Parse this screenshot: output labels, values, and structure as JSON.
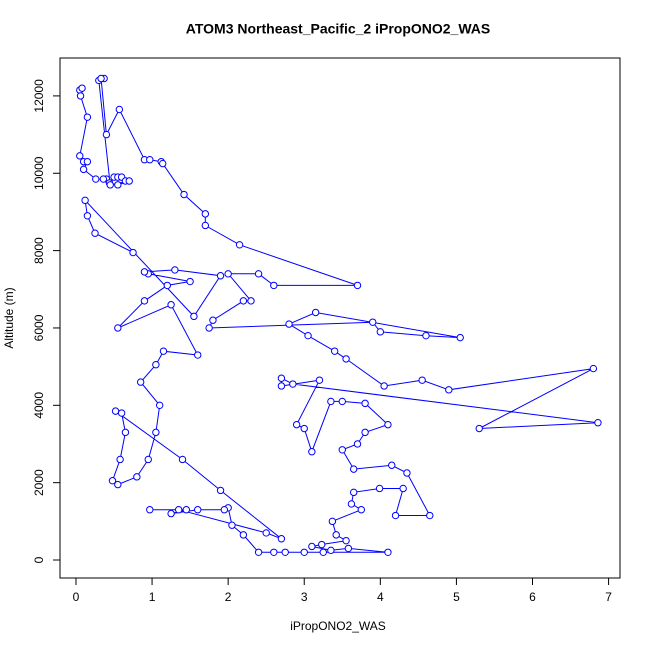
{
  "chart_data": {
    "type": "line",
    "title": "ATOM3 Northeast_Pacific_2 iPropONO2_WAS",
    "xlabel": "iPropONO2_WAS",
    "ylabel": "Altitude (m)",
    "color": "#0000ff",
    "marker": "circle",
    "x": [
      0.05,
      0.08,
      0.06,
      0.15,
      0.05,
      0.1,
      0.15,
      0.1,
      0.26,
      0.4,
      0.36,
      0.44,
      0.5,
      0.55,
      0.6,
      0.65,
      0.55,
      0.7,
      0.45,
      0.3,
      0.37,
      0.33,
      0.4,
      0.57,
      0.9,
      0.97,
      1.12,
      1.14,
      1.42,
      1.7,
      1.7,
      2.15,
      3.7,
      2.6,
      2.4,
      2.0,
      2.3,
      2.2,
      1.8,
      1.75,
      3.9,
      4.0,
      4.6,
      5.05,
      3.15,
      2.8,
      3.05,
      3.4,
      3.55,
      4.05,
      4.55,
      4.9,
      6.8,
      5.3,
      6.86,
      2.85,
      2.7,
      2.7,
      3.2,
      2.9,
      3.0,
      3.1,
      3.35,
      3.5,
      3.8,
      4.1,
      3.8,
      3.7,
      3.5,
      3.65,
      4.15,
      4.35,
      4.65,
      4.2,
      4.3,
      3.99,
      3.65,
      3.62,
      3.75,
      3.37,
      3.42,
      3.55,
      3.23,
      3.1,
      3.35,
      3.58,
      4.1,
      3.25,
      3.0,
      2.75,
      2.6,
      2.4,
      2.2,
      2.05,
      2.0,
      1.95,
      1.6,
      1.25,
      1.45,
      0.97,
      1.35,
      2.5,
      2.7,
      1.9,
      1.4,
      0.52,
      0.6,
      0.65,
      0.58,
      0.48,
      0.55,
      0.8,
      0.95,
      1.05,
      1.1,
      0.85,
      1.05,
      1.15,
      1.6,
      1.25,
      0.55,
      0.9,
      1.2,
      1.5,
      0.95,
      0.9,
      1.3,
      1.9,
      1.55,
      0.12,
      0.15,
      0.25,
      0.75
    ],
    "values": [
      12150,
      12200,
      12000,
      11450,
      10450,
      10300,
      10300,
      10100,
      9850,
      9850,
      9850,
      9750,
      9900,
      9900,
      9900,
      9800,
      9700,
      9800,
      9700,
      12400,
      12450,
      12450,
      11000,
      11650,
      10350,
      10350,
      10300,
      10250,
      9450,
      8950,
      8650,
      8150,
      7100,
      7100,
      7400,
      7400,
      6700,
      6700,
      6200,
      6000,
      6150,
      5900,
      5800,
      5750,
      6400,
      6100,
      5800,
      5400,
      5200,
      4500,
      4650,
      4400,
      4950,
      3400,
      3550,
      4550,
      4700,
      4500,
      4650,
      3500,
      3400,
      2800,
      4100,
      4100,
      4050,
      3500,
      3300,
      3000,
      2850,
      2350,
      2450,
      2250,
      1150,
      1150,
      1850,
      1850,
      1750,
      1450,
      1300,
      1000,
      650,
      500,
      400,
      350,
      250,
      300,
      200,
      200,
      200,
      200,
      200,
      200,
      650,
      900,
      1350,
      1300,
      1300,
      1200,
      1300,
      1300,
      1300,
      700,
      550,
      1800,
      2600,
      3850,
      3800,
      3300,
      2600,
      2050,
      1950,
      2150,
      2600,
      3300,
      4000,
      4600,
      5050,
      5400,
      5300,
      6600,
      6000,
      6700,
      7100,
      7200,
      7400,
      7450,
      7500,
      7350,
      6300,
      9300,
      8900,
      8450,
      7950
    ],
    "xlim": [
      -0.21,
      7.15
    ],
    "ylim": [
      -465,
      12980
    ],
    "xticks": [
      0,
      1,
      2,
      3,
      4,
      5,
      6,
      7
    ],
    "yticks": [
      0,
      2000,
      4000,
      6000,
      8000,
      10000,
      12000
    ]
  }
}
